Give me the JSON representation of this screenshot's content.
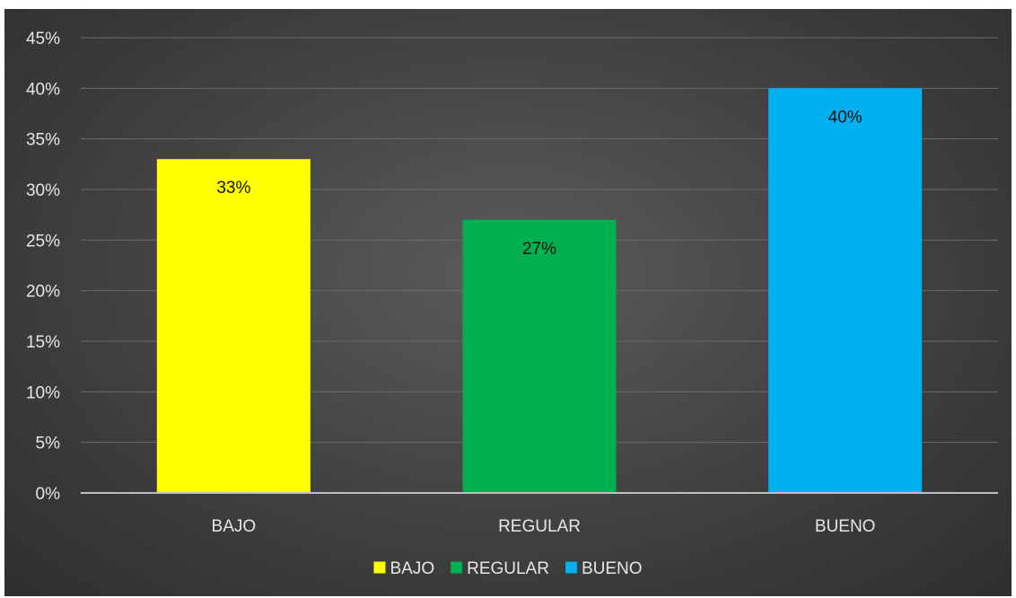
{
  "chart_data": {
    "type": "bar",
    "categories": [
      "BAJO",
      "REGULAR",
      "BUENO"
    ],
    "values": [
      33,
      27,
      40
    ],
    "value_labels": [
      "33%",
      "27%",
      "40%"
    ],
    "colors": [
      "#ffff00",
      "#00b050",
      "#00b0f0"
    ],
    "ylim": [
      0,
      45
    ],
    "y_ticks": [
      "0%",
      "5%",
      "10%",
      "15%",
      "20%",
      "25%",
      "30%",
      "35%",
      "40%",
      "45%"
    ],
    "grid": true,
    "legend": {
      "position": "bottom",
      "entries": [
        "BAJO",
        "REGULAR",
        "BUENO"
      ]
    },
    "title": "",
    "xlabel": "",
    "ylabel": ""
  }
}
